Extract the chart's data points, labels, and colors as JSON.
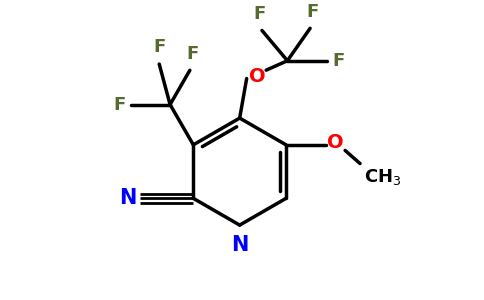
{
  "bg_color": "#ffffff",
  "ring_color": "#000000",
  "N_color": "#0000ff",
  "O_color": "#ff0000",
  "F_color": "#556b2f",
  "lw": 2.5,
  "figsize": [
    4.84,
    3.0
  ],
  "dpi": 100,
  "xlim": [
    0,
    9.5
  ],
  "ylim": [
    0,
    6.0
  ]
}
